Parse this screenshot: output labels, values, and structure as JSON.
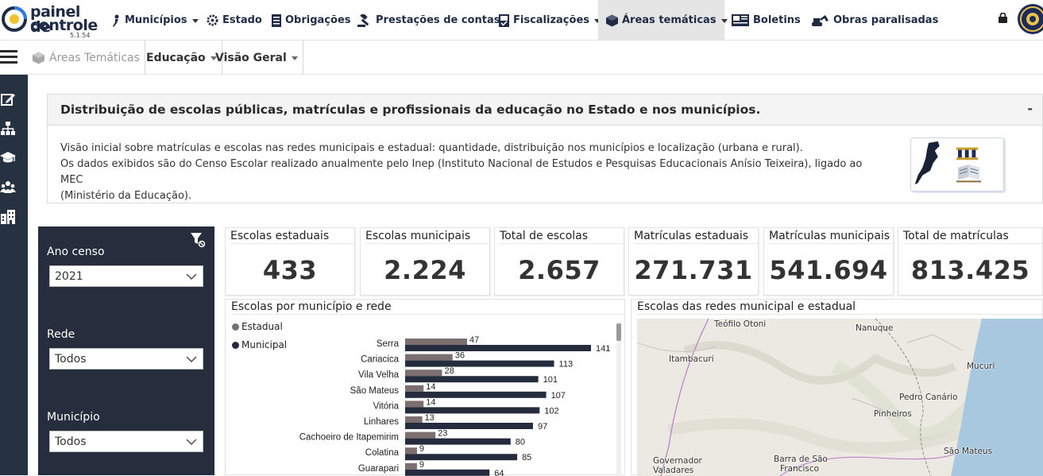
{
  "app": {
    "logo_line1": "painel de",
    "logo_line2": "controle",
    "version": "5.1.54"
  },
  "nav": {
    "items": [
      {
        "label": "Municípios",
        "icon": "person-icon",
        "dropdown": true
      },
      {
        "label": "Estado",
        "icon": "gear-icon",
        "dropdown": false
      },
      {
        "label": "Obrigações",
        "icon": "document-icon",
        "dropdown": false
      },
      {
        "label": "Prestações de contas",
        "icon": "gavel-icon",
        "dropdown": false
      },
      {
        "label": "Fiscalizações",
        "icon": "file-check-icon",
        "dropdown": true
      },
      {
        "label": "Áreas temáticas",
        "icon": "cube-icon",
        "dropdown": true,
        "active": true
      },
      {
        "label": "Boletins",
        "icon": "newspaper-icon",
        "dropdown": false
      },
      {
        "label": "Obras paralisadas",
        "icon": "excavator-icon",
        "dropdown": false
      }
    ]
  },
  "breadcrumb": {
    "root": "Áreas Temáticas",
    "area": "Educação",
    "view": "Visão Geral"
  },
  "sidebar": {
    "icons": [
      "edit-icon",
      "sitemap-icon",
      "graduation-cap-icon",
      "users-icon",
      "buildings-icon"
    ]
  },
  "panel": {
    "title": "Distribuição de escolas públicas, matrículas e profissionais da educação no Estado e nos municípios.",
    "collapse_label": "-",
    "line1": "Visão inicial sobre matrículas e escolas nas redes municipais e estadual: quantidade, distribuição nos municípios e localização (urbana e rural).",
    "line2": "Os dados exibidos são do Censo Escolar realizado anualmente pelo Inep (Instituto Nacional de Estudos e Pesquisas Educacionais Anísio Teixeira), ligado ao MEC",
    "line3": "(Ministério da Educação)."
  },
  "filters": {
    "ano_label": "Ano censo",
    "ano_value": "2021",
    "rede_label": "Rede",
    "rede_value": "Todos",
    "municipio_label": "Município",
    "municipio_value": "Todos"
  },
  "kpis": [
    {
      "label": "Escolas estaduais",
      "value": "433"
    },
    {
      "label": "Escolas municipais",
      "value": "2.224"
    },
    {
      "label": "Total de escolas",
      "value": "2.657"
    },
    {
      "label": "Matrículas estaduais",
      "value": "271.731"
    },
    {
      "label": "Matrículas municipais",
      "value": "541.694"
    },
    {
      "label": "Total de matrículas",
      "value": "813.425"
    }
  ],
  "bar_chart": {
    "title": "Escolas por município e rede"
  },
  "chart_data": {
    "type": "bar",
    "orientation": "horizontal",
    "title": "Escolas por município e rede",
    "legend_position": "top-left",
    "categories": [
      "Serra",
      "Cariacica",
      "Vila Velha",
      "São Mateus",
      "Vitória",
      "Linhares",
      "Cachoeiro de Itapemirim",
      "Colatina",
      "Guarapari"
    ],
    "series": [
      {
        "name": "Estadual",
        "color": "#7b6f70",
        "values": [
          47,
          36,
          28,
          14,
          14,
          13,
          23,
          9,
          9
        ]
      },
      {
        "name": "Municipal",
        "color": "#252c3d",
        "values": [
          141,
          113,
          101,
          107,
          102,
          97,
          80,
          85,
          64
        ]
      }
    ],
    "xlim": [
      0,
      141
    ]
  },
  "map": {
    "title": "Escolas das redes municipal e estadual",
    "cities": [
      "Teófilo Otoni",
      "Nanuque",
      "Itambacuri",
      "Mucuri",
      "Pedro Canário",
      "Pinheiros",
      "São Mateus",
      "Governador",
      "Valadares",
      "Barra de São",
      "Francisco"
    ]
  },
  "colors": {
    "nav_text": "#1f2b44",
    "sidebar_bg": "#263142",
    "filter_bg": "#262d3c",
    "estadual": "#7b6f70",
    "municipal": "#252c3d",
    "ocean": "#a8c8e0"
  }
}
